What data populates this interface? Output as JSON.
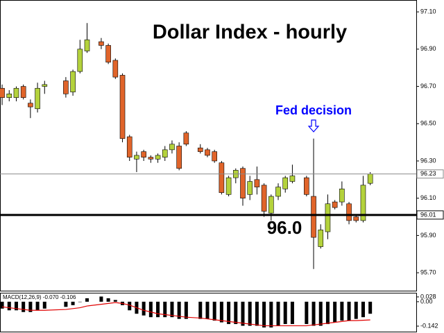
{
  "chart_data": [
    {
      "type": "candlestick",
      "title": "Dollar Index - hourly",
      "x": [
        0,
        1,
        2,
        3,
        4,
        5,
        6,
        9,
        10,
        11,
        12,
        14,
        15,
        16,
        17,
        18,
        19,
        20,
        21,
        22,
        23,
        24,
        25,
        26,
        28,
        29,
        30,
        31,
        32,
        33,
        34,
        35,
        36,
        37,
        38,
        39,
        40,
        41,
        43,
        44,
        45,
        46,
        47,
        48,
        49,
        50,
        51,
        52
      ],
      "open": [
        96.69,
        96.64,
        96.64,
        96.7,
        96.61,
        96.58,
        96.7,
        96.73,
        96.67,
        96.78,
        96.89,
        96.94,
        96.92,
        96.84,
        96.76,
        96.43,
        96.31,
        96.35,
        96.32,
        96.31,
        96.32,
        96.36,
        96.38,
        96.45,
        96.37,
        96.36,
        96.35,
        96.29,
        96.12,
        96.21,
        96.26,
        96.12,
        96.2,
        96.17,
        96.02,
        96.11,
        96.15,
        96.19,
        96.21,
        96.11,
        95.84,
        95.92,
        96.08,
        96.08,
        96.07,
        96.0,
        95.98,
        96.18
      ],
      "high": [
        96.71,
        96.68,
        96.7,
        96.71,
        96.63,
        96.72,
        96.73,
        96.75,
        96.79,
        96.95,
        97.04,
        96.96,
        96.93,
        96.85,
        96.77,
        96.44,
        96.35,
        96.36,
        96.33,
        96.34,
        96.38,
        96.41,
        96.4,
        96.46,
        96.39,
        96.37,
        96.36,
        96.3,
        96.22,
        96.26,
        96.27,
        96.22,
        96.27,
        96.18,
        96.12,
        96.18,
        96.22,
        96.28,
        96.22,
        96.42,
        95.96,
        96.12,
        96.09,
        96.19,
        96.08,
        96.01,
        96.22,
        96.24
      ],
      "low": [
        96.6,
        96.62,
        96.62,
        96.63,
        96.53,
        96.56,
        96.66,
        96.64,
        96.65,
        96.77,
        96.88,
        96.9,
        96.82,
        96.74,
        96.4,
        96.3,
        96.24,
        96.3,
        96.29,
        96.29,
        96.3,
        96.34,
        96.25,
        96.38,
        96.34,
        96.32,
        96.29,
        96.12,
        96.11,
        96.18,
        96.06,
        96.09,
        96.12,
        96.0,
        95.98,
        96.09,
        96.13,
        96.18,
        96.11,
        95.72,
        95.83,
        95.88,
        96.04,
        96.06,
        95.96,
        95.97,
        95.97,
        96.17
      ],
      "close": [
        96.64,
        96.66,
        96.69,
        96.64,
        96.59,
        96.69,
        96.71,
        96.66,
        96.78,
        96.9,
        96.95,
        96.92,
        96.83,
        96.75,
        96.42,
        96.32,
        96.33,
        96.32,
        96.31,
        96.33,
        96.36,
        96.39,
        96.26,
        96.39,
        96.35,
        96.33,
        96.3,
        96.13,
        96.21,
        96.25,
        96.1,
        96.19,
        96.16,
        96.03,
        96.11,
        96.16,
        96.21,
        96.22,
        96.12,
        95.89,
        95.93,
        96.07,
        96.05,
        96.15,
        95.98,
        95.98,
        96.17,
        96.23
      ],
      "up_color": "#b4d23c",
      "down_color": "#e0642a",
      "xlim": [
        -0.3,
        58.5
      ],
      "ylim": [
        95.6,
        97.16
      ],
      "yticks": [
        {
          "value": 97.1,
          "label": "97.10"
        },
        {
          "value": 96.9,
          "label": "96.90"
        },
        {
          "value": 96.7,
          "label": "96.70"
        },
        {
          "value": 96.5,
          "label": "96.50"
        },
        {
          "value": 96.3,
          "label": "96.30"
        },
        {
          "value": 96.1,
          "label": "96.10"
        },
        {
          "value": 95.9,
          "label": "95.90"
        },
        {
          "value": 95.7,
          "label": "95.70"
        }
      ],
      "last_price": 96.23,
      "support_line": 96.01,
      "annotations": [
        {
          "text": "Fed decision",
          "x": 44,
          "color": "#0000ff"
        },
        {
          "text": "96.0"
        }
      ]
    },
    {
      "type": "macd",
      "title": "MACD(12,26,9) -0.070 -0.106",
      "histogram": [
        -0.04,
        -0.05,
        -0.05,
        -0.06,
        -0.06,
        -0.05,
        -0.04,
        -0.03,
        -0.02,
        0.0,
        0.02,
        0.03,
        0.02,
        0.01,
        -0.02,
        -0.05,
        -0.07,
        -0.08,
        -0.09,
        -0.09,
        -0.09,
        -0.09,
        -0.1,
        -0.1,
        -0.1,
        -0.1,
        -0.11,
        -0.12,
        -0.13,
        -0.13,
        -0.14,
        -0.14,
        -0.14,
        -0.15,
        -0.15,
        -0.14,
        -0.13,
        -0.13,
        -0.13,
        -0.14,
        -0.14,
        -0.13,
        -0.12,
        -0.11,
        -0.11,
        -0.1,
        -0.09,
        -0.07
      ],
      "signal": [
        -0.03,
        -0.035,
        -0.04,
        -0.045,
        -0.05,
        -0.05,
        -0.05,
        -0.045,
        -0.04,
        -0.035,
        -0.025,
        -0.015,
        -0.01,
        -0.005,
        -0.01,
        -0.02,
        -0.035,
        -0.05,
        -0.06,
        -0.07,
        -0.075,
        -0.08,
        -0.085,
        -0.09,
        -0.095,
        -0.1,
        -0.105,
        -0.11,
        -0.115,
        -0.12,
        -0.125,
        -0.13,
        -0.135,
        -0.14,
        -0.14,
        -0.14,
        -0.14,
        -0.14,
        -0.14,
        -0.135,
        -0.13,
        -0.125,
        -0.12,
        -0.115,
        -0.11,
        -0.11,
        -0.108,
        -0.106
      ],
      "bar_color": "#000000",
      "signal_color": "#e00000",
      "ylim": [
        -0.174,
        0.048
      ],
      "yticks": [
        0.028,
        {
          "value": 0,
          "label": "0.00"
        },
        -0.142
      ]
    }
  ]
}
